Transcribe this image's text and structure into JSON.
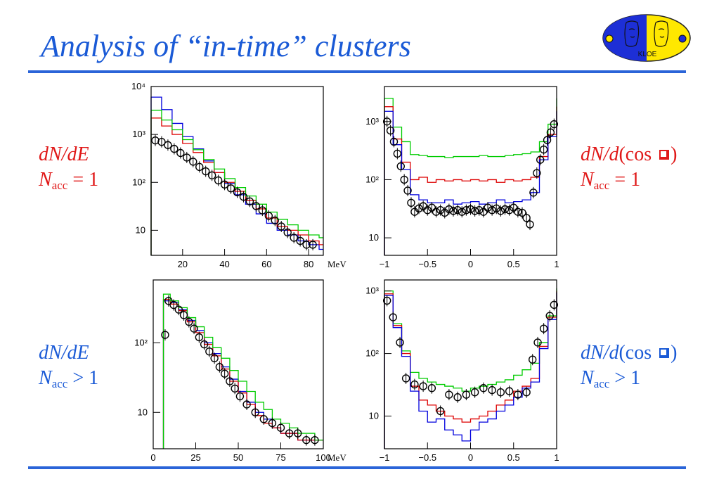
{
  "slide": {
    "title": "Analysis of “in-time” clusters"
  },
  "labels": {
    "top_left": {
      "line1": "dN/dE",
      "n_main": "N",
      "n_sub": "acc",
      "n_rest": " = 1"
    },
    "top_right": {
      "pre": "dN/d",
      "fn": "(cos ",
      "close": ")",
      "n_main": "N",
      "n_sub": "acc",
      "n_rest": " = 1"
    },
    "bottom_left": {
      "line1": "dN/dE",
      "n_main": "N",
      "n_sub": "acc",
      "n_rest": " > 1"
    },
    "bottom_right": {
      "pre": "dN/d",
      "fn": "(cos ",
      "close": ")",
      "n_main": "N",
      "n_sub": "acc",
      "n_rest": " > 1"
    }
  },
  "logo": {
    "text": "KLOE"
  },
  "colors": {
    "title": "#1a5ad6",
    "red_text": "#e01818",
    "blue_text": "#1a5ad6",
    "rule": "#2a64d8"
  },
  "chart_data": [
    {
      "id": "energy_nacc1",
      "type": "line",
      "xunit": "MeV",
      "xlim": [
        5,
        87
      ],
      "ylim": [
        3,
        10000
      ],
      "yscale": "log",
      "xticks": [
        "20",
        "40",
        "60",
        "80"
      ],
      "xtick_values": [
        20,
        40,
        60,
        80
      ],
      "yticks": [
        "10",
        "10²",
        "10³",
        "10⁴"
      ],
      "ytick_values": [
        10,
        100,
        1000,
        10000
      ],
      "series": [
        {
          "color": "#0000dd",
          "style": "step",
          "x": [
            5,
            10,
            15,
            20,
            25,
            30,
            35,
            40,
            45,
            50,
            55,
            60,
            65,
            70,
            75,
            80,
            85
          ],
          "y": [
            6000,
            3300,
            1700,
            900,
            500,
            280,
            160,
            95,
            55,
            35,
            22,
            14,
            10,
            8,
            6,
            5,
            4
          ]
        },
        {
          "color": "#dd0000",
          "style": "step",
          "x": [
            5,
            10,
            15,
            20,
            25,
            30,
            35,
            40,
            45,
            50,
            55,
            60,
            65,
            70,
            75,
            80,
            85
          ],
          "y": [
            2200,
            1500,
            1000,
            650,
            420,
            260,
            160,
            100,
            65,
            42,
            28,
            18,
            12,
            10,
            8,
            6,
            5
          ]
        },
        {
          "color": "#00cc00",
          "style": "step",
          "x": [
            5,
            10,
            15,
            20,
            25,
            30,
            35,
            40,
            45,
            50,
            55,
            60,
            65,
            70,
            75,
            80,
            85
          ],
          "y": [
            3200,
            2000,
            1250,
            780,
            480,
            300,
            190,
            120,
            78,
            52,
            35,
            24,
            17,
            13,
            10,
            8,
            7
          ]
        },
        {
          "color": "#000000",
          "style": "points",
          "x": [
            7,
            10,
            13,
            16,
            19,
            22,
            25,
            28,
            31,
            34,
            37,
            40,
            43,
            46,
            49,
            52,
            55,
            58,
            61,
            64,
            67,
            70,
            73,
            76,
            79,
            82
          ],
          "y": [
            750,
            700,
            600,
            500,
            410,
            330,
            270,
            210,
            170,
            140,
            110,
            90,
            75,
            62,
            50,
            40,
            32,
            26,
            20,
            16,
            12,
            9,
            7,
            6,
            5,
            5
          ]
        }
      ]
    },
    {
      "id": "costheta_nacc1",
      "type": "line",
      "xlim": [
        -1,
        1
      ],
      "ylim": [
        5,
        4000
      ],
      "yscale": "log",
      "xticks": [
        "−1",
        "−0.5",
        "0",
        "0.5",
        "1"
      ],
      "xtick_values": [
        -1,
        -0.5,
        0,
        0.5,
        1
      ],
      "yticks": [
        "10",
        "10²",
        "10³"
      ],
      "ytick_values": [
        10,
        100,
        1000
      ],
      "series": [
        {
          "color": "#00cc00",
          "style": "step",
          "x": [
            -1,
            -0.9,
            -0.8,
            -0.7,
            -0.6,
            -0.5,
            -0.4,
            -0.3,
            -0.2,
            -0.1,
            0,
            0.1,
            0.2,
            0.3,
            0.4,
            0.5,
            0.6,
            0.7,
            0.8,
            0.9,
            1
          ],
          "y": [
            2500,
            800,
            450,
            270,
            260,
            250,
            250,
            240,
            250,
            250,
            250,
            260,
            250,
            250,
            260,
            270,
            280,
            300,
            450,
            900,
            2500
          ]
        },
        {
          "color": "#dd0000",
          "style": "step",
          "x": [
            -1,
            -0.9,
            -0.8,
            -0.7,
            -0.6,
            -0.5,
            -0.4,
            -0.3,
            -0.2,
            -0.1,
            0,
            0.1,
            0.2,
            0.3,
            0.4,
            0.5,
            0.6,
            0.7,
            0.8,
            0.9,
            1
          ],
          "y": [
            1800,
            500,
            200,
            100,
            110,
            90,
            100,
            95,
            100,
            95,
            100,
            95,
            100,
            90,
            100,
            95,
            100,
            110,
            250,
            600,
            1800
          ]
        },
        {
          "color": "#0000dd",
          "style": "step",
          "x": [
            -1,
            -0.9,
            -0.8,
            -0.7,
            -0.6,
            -0.5,
            -0.4,
            -0.3,
            -0.2,
            -0.1,
            0,
            0.1,
            0.2,
            0.3,
            0.4,
            0.5,
            0.6,
            0.7,
            0.8,
            0.9,
            1
          ],
          "y": [
            1500,
            400,
            150,
            55,
            45,
            40,
            40,
            45,
            38,
            40,
            42,
            38,
            40,
            45,
            40,
            42,
            45,
            60,
            220,
            550,
            1500
          ]
        },
        {
          "color": "#000000",
          "style": "points",
          "x": [
            -0.97,
            -0.93,
            -0.89,
            -0.85,
            -0.81,
            -0.77,
            -0.73,
            -0.69,
            -0.65,
            -0.6,
            -0.55,
            -0.5,
            -0.45,
            -0.4,
            -0.35,
            -0.3,
            -0.25,
            -0.2,
            -0.15,
            -0.1,
            -0.05,
            0,
            0.05,
            0.1,
            0.15,
            0.2,
            0.25,
            0.3,
            0.35,
            0.4,
            0.45,
            0.5,
            0.55,
            0.6,
            0.65,
            0.69,
            0.73,
            0.77,
            0.81,
            0.85,
            0.89,
            0.93,
            0.97
          ],
          "y": [
            1000,
            700,
            450,
            280,
            170,
            100,
            65,
            40,
            28,
            32,
            35,
            30,
            33,
            28,
            30,
            27,
            31,
            29,
            30,
            28,
            30,
            31,
            29,
            30,
            28,
            33,
            30,
            32,
            29,
            31,
            30,
            33,
            28,
            27,
            22,
            17,
            60,
            130,
            220,
            330,
            480,
            650,
            900
          ]
        }
      ]
    },
    {
      "id": "energy_naccgt1",
      "type": "line",
      "xunit": "MeV",
      "xlim": [
        0,
        100
      ],
      "ylim": [
        3,
        800
      ],
      "yscale": "log",
      "xticks": [
        "0",
        "25",
        "50",
        "75",
        "100"
      ],
      "xtick_values": [
        0,
        25,
        50,
        75,
        100
      ],
      "yticks": [
        "10",
        "10²"
      ],
      "ytick_values": [
        10,
        100
      ],
      "series": [
        {
          "color": "#0000dd",
          "style": "step",
          "x": [
            6,
            10,
            15,
            20,
            25,
            30,
            35,
            40,
            45,
            50,
            55,
            60,
            65,
            70,
            75,
            80,
            85,
            90,
            95,
            100
          ],
          "y": [
            400,
            380,
            300,
            210,
            150,
            100,
            70,
            45,
            30,
            20,
            14,
            10,
            8,
            6,
            5,
            5,
            4,
            4,
            4,
            4
          ]
        },
        {
          "color": "#dd0000",
          "style": "step",
          "x": [
            6,
            10,
            15,
            20,
            25,
            30,
            35,
            40,
            45,
            50,
            55,
            60,
            65,
            70,
            75,
            80,
            85,
            90,
            95,
            100
          ],
          "y": [
            420,
            360,
            290,
            200,
            140,
            95,
            65,
            42,
            28,
            19,
            13,
            9,
            7,
            6,
            5,
            5,
            4,
            4,
            4,
            4
          ]
        },
        {
          "color": "#00cc00",
          "style": "step",
          "x": [
            6,
            10,
            15,
            20,
            25,
            30,
            35,
            40,
            45,
            50,
            55,
            60,
            65,
            70,
            75,
            80,
            85,
            90,
            95,
            100
          ],
          "y": [
            500,
            400,
            320,
            230,
            170,
            120,
            85,
            60,
            40,
            28,
            20,
            14,
            11,
            8,
            7,
            6,
            5,
            5,
            4,
            4
          ]
        },
        {
          "color": "#000000",
          "style": "points",
          "x": [
            7,
            9,
            12,
            15,
            18,
            21,
            24,
            27,
            30,
            33,
            36,
            39,
            42,
            45,
            48,
            51,
            55,
            60,
            65,
            70,
            75,
            80,
            85,
            90,
            95
          ],
          "y": [
            130,
            400,
            350,
            300,
            250,
            200,
            160,
            120,
            95,
            75,
            60,
            45,
            36,
            28,
            22,
            17,
            13,
            10,
            8,
            7,
            6,
            5,
            5,
            4,
            4
          ]
        }
      ]
    },
    {
      "id": "costheta_naccgt1",
      "type": "line",
      "xlim": [
        -1,
        1
      ],
      "ylim": [
        3,
        1500
      ],
      "yscale": "log",
      "xticks": [
        "−1",
        "−0.5",
        "0",
        "0.5",
        "1"
      ],
      "xtick_values": [
        -1,
        -0.5,
        0,
        0.5,
        1
      ],
      "yticks": [
        "10",
        "10²",
        "10³"
      ],
      "ytick_values": [
        10,
        100,
        1000
      ],
      "series": [
        {
          "color": "#00cc00",
          "style": "step",
          "x": [
            -1,
            -0.9,
            -0.8,
            -0.7,
            -0.6,
            -0.5,
            -0.4,
            -0.3,
            -0.2,
            -0.1,
            0,
            0.1,
            0.2,
            0.3,
            0.4,
            0.5,
            0.6,
            0.7,
            0.8,
            0.9,
            1
          ],
          "y": [
            1000,
            300,
            110,
            50,
            40,
            35,
            32,
            30,
            28,
            25,
            28,
            30,
            32,
            35,
            38,
            45,
            55,
            70,
            150,
            400,
            1100
          ]
        },
        {
          "color": "#dd0000",
          "style": "step",
          "x": [
            -1,
            -0.9,
            -0.8,
            -0.7,
            -0.6,
            -0.5,
            -0.4,
            -0.3,
            -0.2,
            -0.1,
            0,
            0.1,
            0.2,
            0.3,
            0.4,
            0.5,
            0.6,
            0.7,
            0.8,
            0.9,
            1
          ],
          "y": [
            900,
            280,
            100,
            30,
            18,
            15,
            12,
            10,
            9,
            8,
            9,
            10,
            12,
            15,
            18,
            25,
            30,
            40,
            130,
            380,
            1000
          ]
        },
        {
          "color": "#0000dd",
          "style": "step",
          "x": [
            -1,
            -0.9,
            -0.8,
            -0.7,
            -0.6,
            -0.5,
            -0.4,
            -0.3,
            -0.2,
            -0.1,
            0,
            0.1,
            0.2,
            0.3,
            0.4,
            0.5,
            0.6,
            0.7,
            0.8,
            0.9,
            1
          ],
          "y": [
            850,
            260,
            90,
            25,
            12,
            8,
            9,
            6,
            5,
            4,
            6,
            8,
            9,
            12,
            15,
            20,
            28,
            35,
            120,
            350,
            950
          ]
        },
        {
          "color": "#000000",
          "style": "points",
          "x": [
            -0.97,
            -0.9,
            -0.82,
            -0.75,
            -0.65,
            -0.55,
            -0.45,
            -0.35,
            -0.25,
            -0.15,
            -0.05,
            0.05,
            0.15,
            0.25,
            0.35,
            0.45,
            0.55,
            0.65,
            0.72,
            0.78,
            0.85,
            0.92,
            0.97
          ],
          "y": [
            700,
            380,
            150,
            40,
            32,
            30,
            28,
            12,
            22,
            20,
            22,
            24,
            28,
            26,
            24,
            25,
            22,
            24,
            80,
            150,
            250,
            400,
            600
          ]
        }
      ]
    }
  ]
}
